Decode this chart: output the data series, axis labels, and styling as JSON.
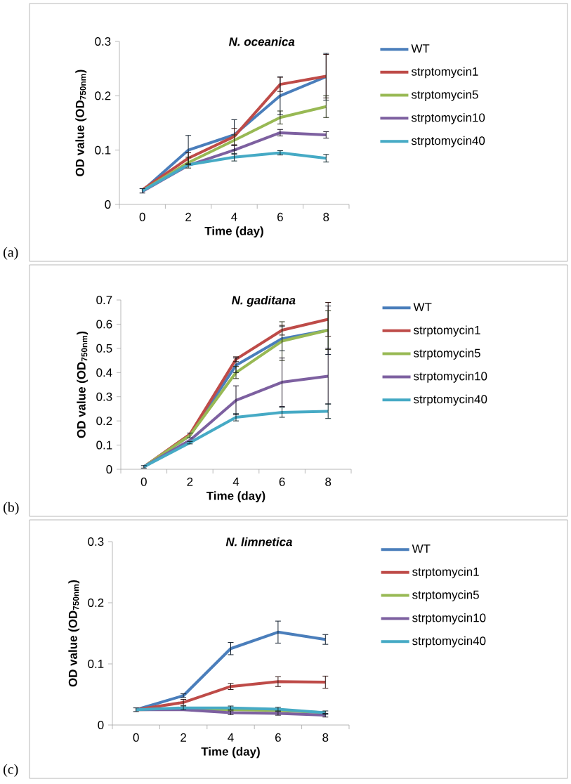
{
  "chart_data": [
    {
      "type": "line",
      "title": "N. oceanica",
      "xlabel": "Time (day)",
      "ylabel": "OD value (OD$_{750nm}$)",
      "categories": [
        "0",
        "2",
        "4",
        "6",
        "8"
      ],
      "ylim": [
        0,
        0.3
      ],
      "yticks": [
        0,
        0.1,
        0.2,
        0.3
      ],
      "legend": "right",
      "annotations": [
        "(a)"
      ],
      "series": [
        {
          "name": "WT",
          "color": "#4a7ebb",
          "values": [
            0.025,
            0.1,
            0.128,
            0.2,
            0.235
          ],
          "errors": [
            0.004,
            0.027,
            0.028,
            0.035,
            0.043
          ]
        },
        {
          "name": "strptomycin1",
          "color": "#be4b48",
          "values": [
            0.027,
            0.085,
            0.125,
            0.221,
            0.236
          ],
          "errors": [
            null,
            0.01,
            0.015,
            0.013,
            0.04
          ]
        },
        {
          "name": "strptomycin5",
          "color": "#98b954",
          "values": [
            0.025,
            0.077,
            0.118,
            0.16,
            0.18
          ],
          "errors": [
            null,
            0.01,
            0.01,
            0.012,
            0.02
          ]
        },
        {
          "name": "strptomycin10",
          "color": "#7d60a0",
          "values": [
            0.024,
            0.072,
            0.1,
            0.132,
            0.128
          ],
          "errors": [
            null,
            null,
            0.008,
            0.006,
            0.006
          ]
        },
        {
          "name": "strptomycin40",
          "color": "#46aac5",
          "values": [
            0.025,
            0.073,
            0.087,
            0.095,
            0.085
          ],
          "errors": [
            null,
            null,
            0.007,
            0.004,
            0.007
          ]
        }
      ]
    },
    {
      "type": "line",
      "title": "N. gaditana",
      "xlabel": "Time (day)",
      "ylabel": "OD value (OD$_{750nm}$)",
      "categories": [
        "0",
        "2",
        "4",
        "6",
        "8"
      ],
      "ylim": [
        0,
        0.7
      ],
      "yticks": [
        0,
        0.1,
        0.2,
        0.3,
        0.4,
        0.5,
        0.6,
        0.7
      ],
      "legend": "right",
      "annotations": [
        "(b)"
      ],
      "series": [
        {
          "name": "WT",
          "color": "#4a7ebb",
          "values": [
            0.01,
            0.14,
            0.43,
            0.54,
            0.575
          ],
          "errors": [
            0.005,
            0.01,
            0.03,
            0.05,
            0.1
          ]
        },
        {
          "name": "strptomycin1",
          "color": "#be4b48",
          "values": [
            0.01,
            0.145,
            0.455,
            0.575,
            0.62
          ],
          "errors": [
            null,
            null,
            0.01,
            0.02,
            0.07
          ]
        },
        {
          "name": "strptomycin5",
          "color": "#98b954",
          "values": [
            0.01,
            0.14,
            0.4,
            0.53,
            0.575
          ],
          "errors": [
            null,
            null,
            0.025,
            0.08,
            0.08
          ]
        },
        {
          "name": "strptomycin10",
          "color": "#7d60a0",
          "values": [
            0.01,
            0.12,
            0.285,
            0.36,
            0.385
          ],
          "errors": [
            null,
            null,
            0.06,
            0.1,
            0.115
          ]
        },
        {
          "name": "strptomycin40",
          "color": "#46aac5",
          "values": [
            0.01,
            0.11,
            0.215,
            0.235,
            0.24
          ],
          "errors": [
            null,
            0.005,
            0.015,
            0.02,
            0.03
          ]
        }
      ]
    },
    {
      "type": "line",
      "title": "N. limnetica",
      "xlabel": "Time (day)",
      "ylabel": "OD value (OD$_{750nm}$)",
      "categories": [
        "0",
        "2",
        "4",
        "6",
        "8"
      ],
      "ylim": [
        0,
        0.3
      ],
      "yticks": [
        0,
        0.1,
        0.2,
        0.3
      ],
      "legend": "right",
      "annotations": [
        "(c)"
      ],
      "series": [
        {
          "name": "WT",
          "color": "#4a7ebb",
          "values": [
            0.025,
            0.048,
            0.125,
            0.152,
            0.14
          ],
          "errors": [
            0.003,
            0.003,
            0.01,
            0.018,
            0.008
          ]
        },
        {
          "name": "strptomycin1",
          "color": "#be4b48",
          "values": [
            0.025,
            0.037,
            0.063,
            0.071,
            0.07
          ],
          "errors": [
            null,
            0.005,
            0.005,
            0.008,
            0.01
          ]
        },
        {
          "name": "strptomycin5",
          "color": "#98b954",
          "values": [
            0.025,
            0.026,
            0.025,
            0.024,
            0.02
          ]
        },
        {
          "name": "strptomycin10",
          "color": "#7d60a0",
          "values": [
            0.025,
            0.025,
            0.02,
            0.019,
            0.016
          ],
          "errors": [
            null,
            null,
            0.003,
            0.003,
            0.003
          ]
        },
        {
          "name": "strptomycin40",
          "color": "#46aac5",
          "values": [
            0.025,
            0.028,
            0.028,
            0.026,
            0.02
          ],
          "errors": [
            null,
            0.003,
            0.003,
            0.003,
            0.003
          ]
        }
      ]
    }
  ]
}
